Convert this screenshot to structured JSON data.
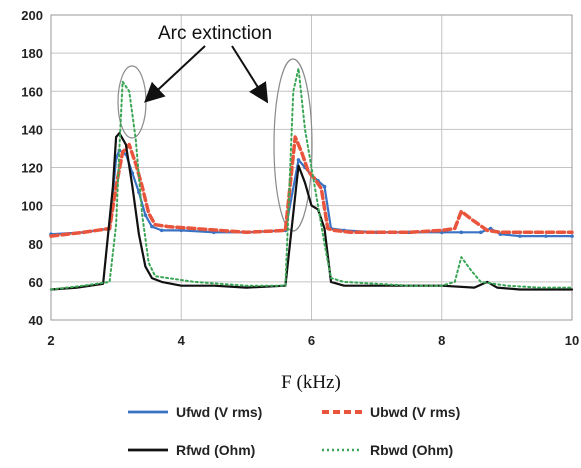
{
  "chart_data": {
    "type": "line",
    "title": "",
    "xlabel": "F (kHz)",
    "ylabel": "",
    "xlim": [
      2,
      10
    ],
    "ylim": [
      40,
      200
    ],
    "xticks": [
      2,
      4,
      6,
      8,
      10
    ],
    "yticks": [
      40,
      60,
      80,
      100,
      120,
      140,
      160,
      180,
      200
    ],
    "grid": true,
    "legend_position": "bottom",
    "annotation": {
      "text": "Arc extinction"
    },
    "series": [
      {
        "name": "Ufwd (V rms)",
        "color": "#3a72c4",
        "style": "solid",
        "x": [
          2.0,
          2.5,
          2.9,
          3.0,
          3.05,
          3.15,
          3.25,
          3.35,
          3.45,
          3.55,
          3.7,
          4.0,
          4.5,
          5.0,
          5.6,
          5.8,
          5.9,
          6.0,
          6.1,
          6.2,
          6.3,
          6.5,
          7.0,
          7.5,
          8.0,
          8.3,
          8.6,
          8.75,
          8.9,
          9.2,
          9.6,
          10.0
        ],
        "y": [
          85,
          86,
          88,
          125,
          129,
          127,
          117,
          107,
          95,
          89,
          87,
          87,
          86,
          86,
          87,
          124,
          120,
          116,
          113,
          110,
          88,
          87,
          86,
          86,
          86,
          86,
          86,
          88,
          85,
          84,
          84,
          84
        ]
      },
      {
        "name": "Ubwd (V rms)",
        "color": "#e8543c",
        "style": "dashed",
        "x": [
          2.0,
          2.5,
          2.9,
          3.0,
          3.1,
          3.2,
          3.3,
          3.4,
          3.5,
          3.6,
          3.8,
          4.2,
          4.6,
          5.0,
          5.6,
          5.75,
          5.85,
          5.95,
          6.05,
          6.15,
          6.25,
          6.35,
          6.6,
          7.0,
          7.5,
          8.0,
          8.2,
          8.3,
          8.45,
          8.7,
          8.9,
          9.3,
          10.0
        ],
        "y": [
          84,
          86,
          88,
          110,
          128,
          132,
          122,
          110,
          96,
          90,
          89,
          88,
          87,
          86,
          87,
          136,
          128,
          118,
          114,
          109,
          88,
          87,
          86,
          86,
          86,
          87,
          88,
          97,
          93,
          87,
          86,
          86,
          86
        ]
      },
      {
        "name": "Rfwd (Ohm)",
        "color": "#111111",
        "style": "solid",
        "x": [
          2.0,
          2.4,
          2.8,
          2.95,
          3.0,
          3.05,
          3.15,
          3.25,
          3.35,
          3.45,
          3.55,
          3.7,
          4.0,
          4.5,
          5.0,
          5.6,
          5.8,
          5.9,
          6.0,
          6.1,
          6.2,
          6.3,
          6.5,
          7.0,
          7.5,
          8.0,
          8.5,
          8.7,
          8.85,
          9.2,
          9.6,
          10.0
        ],
        "y": [
          56,
          57,
          59,
          110,
          136,
          138,
          132,
          110,
          85,
          68,
          62,
          60,
          58,
          58,
          57,
          58,
          121,
          112,
          100,
          98,
          88,
          60,
          58,
          58,
          58,
          58,
          57,
          60,
          57,
          56,
          56,
          56
        ]
      },
      {
        "name": "Rbwd (Ohm)",
        "color": "#3aa655",
        "style": "dotted",
        "x": [
          2.0,
          2.5,
          2.9,
          3.0,
          3.05,
          3.1,
          3.2,
          3.3,
          3.4,
          3.5,
          3.6,
          3.8,
          4.2,
          4.6,
          5.0,
          5.6,
          5.72,
          5.8,
          5.9,
          6.0,
          6.1,
          6.2,
          6.3,
          6.5,
          7.0,
          7.5,
          8.0,
          8.2,
          8.3,
          8.45,
          8.6,
          9.0,
          9.5,
          10.0
        ],
        "y": [
          56,
          58,
          60,
          90,
          130,
          165,
          160,
          135,
          95,
          70,
          63,
          62,
          60,
          59,
          58,
          58,
          160,
          172,
          140,
          120,
          100,
          80,
          62,
          60,
          59,
          58,
          58,
          60,
          73,
          66,
          60,
          58,
          57,
          57
        ]
      }
    ]
  }
}
